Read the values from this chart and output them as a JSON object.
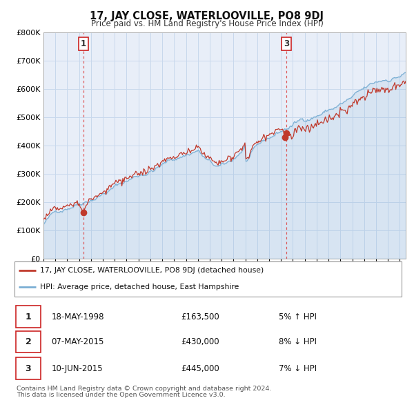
{
  "title": "17, JAY CLOSE, WATERLOOVILLE, PO8 9DJ",
  "subtitle": "Price paid vs. HM Land Registry's House Price Index (HPI)",
  "legend_label_red": "17, JAY CLOSE, WATERLOOVILLE, PO8 9DJ (detached house)",
  "legend_label_blue": "HPI: Average price, detached house, East Hampshire",
  "footnote1": "Contains HM Land Registry data © Crown copyright and database right 2024.",
  "footnote2": "This data is licensed under the Open Government Licence v3.0.",
  "transactions": [
    {
      "num": 1,
      "date": "18-MAY-1998",
      "price": "£163,500",
      "pct": "5% ↑ HPI",
      "year": 1998.37,
      "value": 163500
    },
    {
      "num": 2,
      "date": "07-MAY-2015",
      "price": "£430,000",
      "pct": "8% ↓ HPI",
      "year": 2015.35,
      "value": 430000
    },
    {
      "num": 3,
      "date": "10-JUN-2015",
      "price": "£445,000",
      "pct": "7% ↓ HPI",
      "year": 2015.44,
      "value": 445000
    }
  ],
  "hpi_color": "#7bafd4",
  "price_color": "#c0392b",
  "vline_color": "#dd4444",
  "grid_color": "#c8d8ec",
  "plot_bg": "#e8eef8",
  "ylim": [
    0,
    800000
  ],
  "xlim_start": 1995.0,
  "xlim_end": 2025.5
}
